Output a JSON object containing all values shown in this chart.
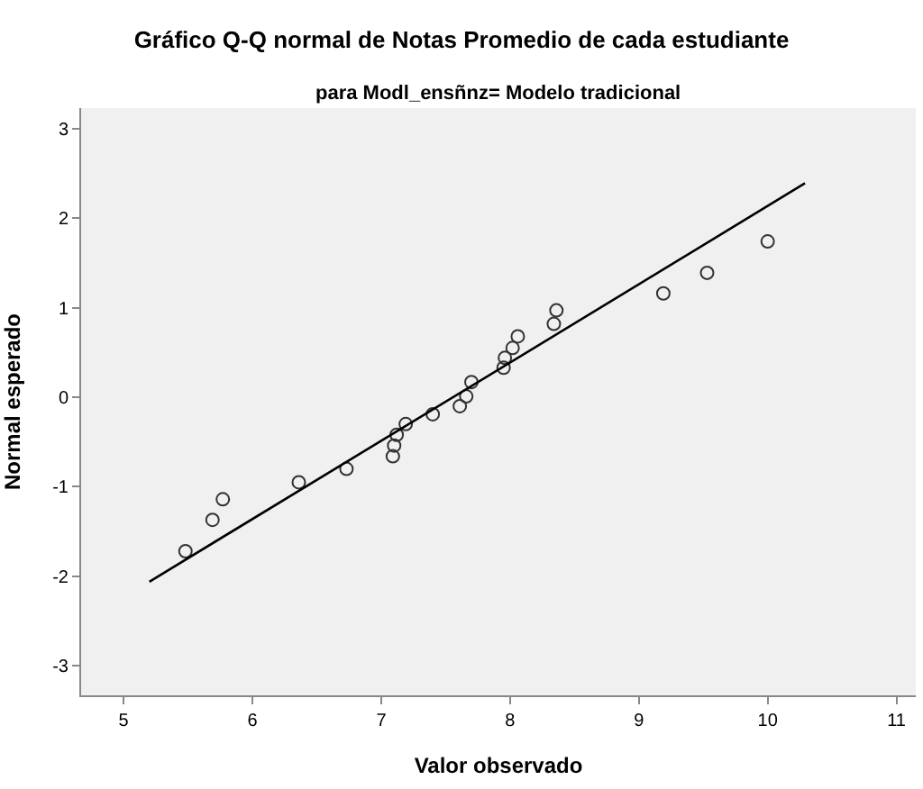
{
  "chart_data": {
    "type": "scatter",
    "title": "Gráfico Q-Q normal de Notas Promedio de cada estudiante",
    "subtitle": "para Modl_ensñnz= Modelo tradicional",
    "xlabel": "Valor observado",
    "ylabel": "Normal esperado",
    "xlim": [
      4.67,
      11.15
    ],
    "ylim": [
      -3.33,
      3.23
    ],
    "xticks": [
      5,
      6,
      7,
      8,
      9,
      10,
      11
    ],
    "yticks": [
      -3,
      -2,
      -1,
      0,
      1,
      2,
      3
    ],
    "grid": false,
    "marker": "circle",
    "series": [
      {
        "color": "#333333",
        "x": [
          5.48,
          5.69,
          5.77,
          6.36,
          6.73,
          7.09,
          7.1,
          7.12,
          7.19,
          7.4,
          7.61,
          7.66,
          7.7,
          7.95,
          7.96,
          8.02,
          8.06,
          8.34,
          8.36,
          9.19,
          9.53,
          10.0
        ],
        "values": [
          -1.72,
          -1.37,
          -1.14,
          -0.95,
          -0.8,
          -0.66,
          -0.54,
          -0.42,
          -0.3,
          -0.19,
          -0.1,
          0.01,
          0.17,
          0.33,
          0.44,
          0.55,
          0.68,
          0.82,
          0.97,
          1.16,
          1.39,
          1.74
        ]
      },
      {
        "type": "line",
        "marker": "none",
        "color": "#000000",
        "x": [
          5.2,
          10.29
        ],
        "values": [
          -2.06,
          2.39
        ]
      }
    ]
  }
}
